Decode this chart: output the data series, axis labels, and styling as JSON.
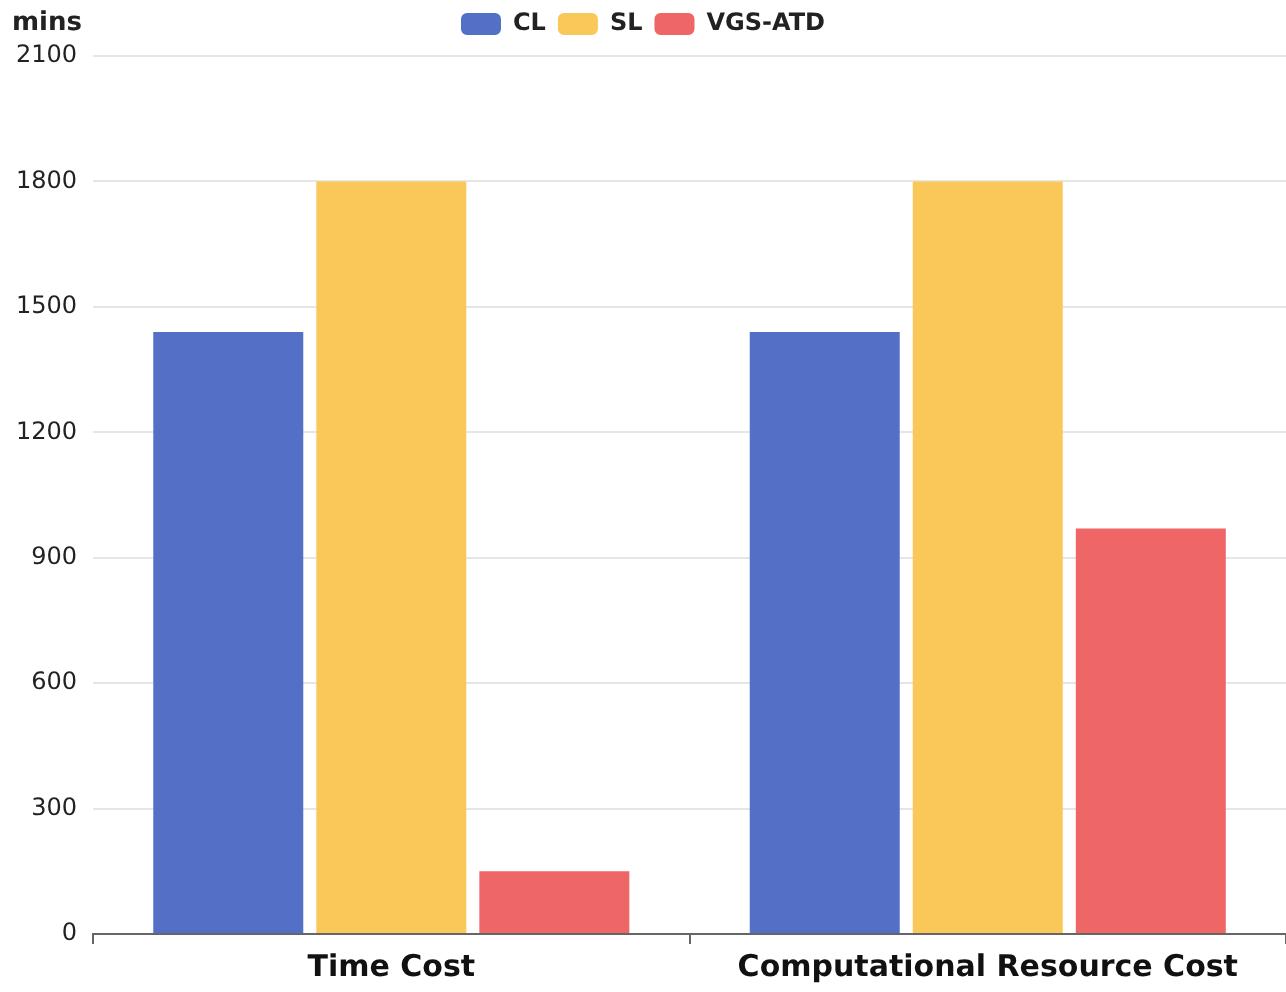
{
  "chart_data": {
    "type": "bar",
    "ylabel": "mins",
    "categories": [
      "Time Cost",
      "Computational Resource Cost"
    ],
    "series": [
      {
        "name": "CL",
        "color": "#5470c6",
        "values": [
          1440,
          1440
        ]
      },
      {
        "name": "SL",
        "color": "#fac858",
        "values": [
          1800,
          1800
        ]
      },
      {
        "name": "VGS-ATD",
        "color": "#ee6666",
        "values": [
          150,
          970
        ]
      }
    ],
    "ylim": [
      0,
      2100
    ],
    "yticks": [
      0,
      300,
      600,
      900,
      1200,
      1500,
      1800,
      2100
    ],
    "grid": "y",
    "legend": "top"
  }
}
